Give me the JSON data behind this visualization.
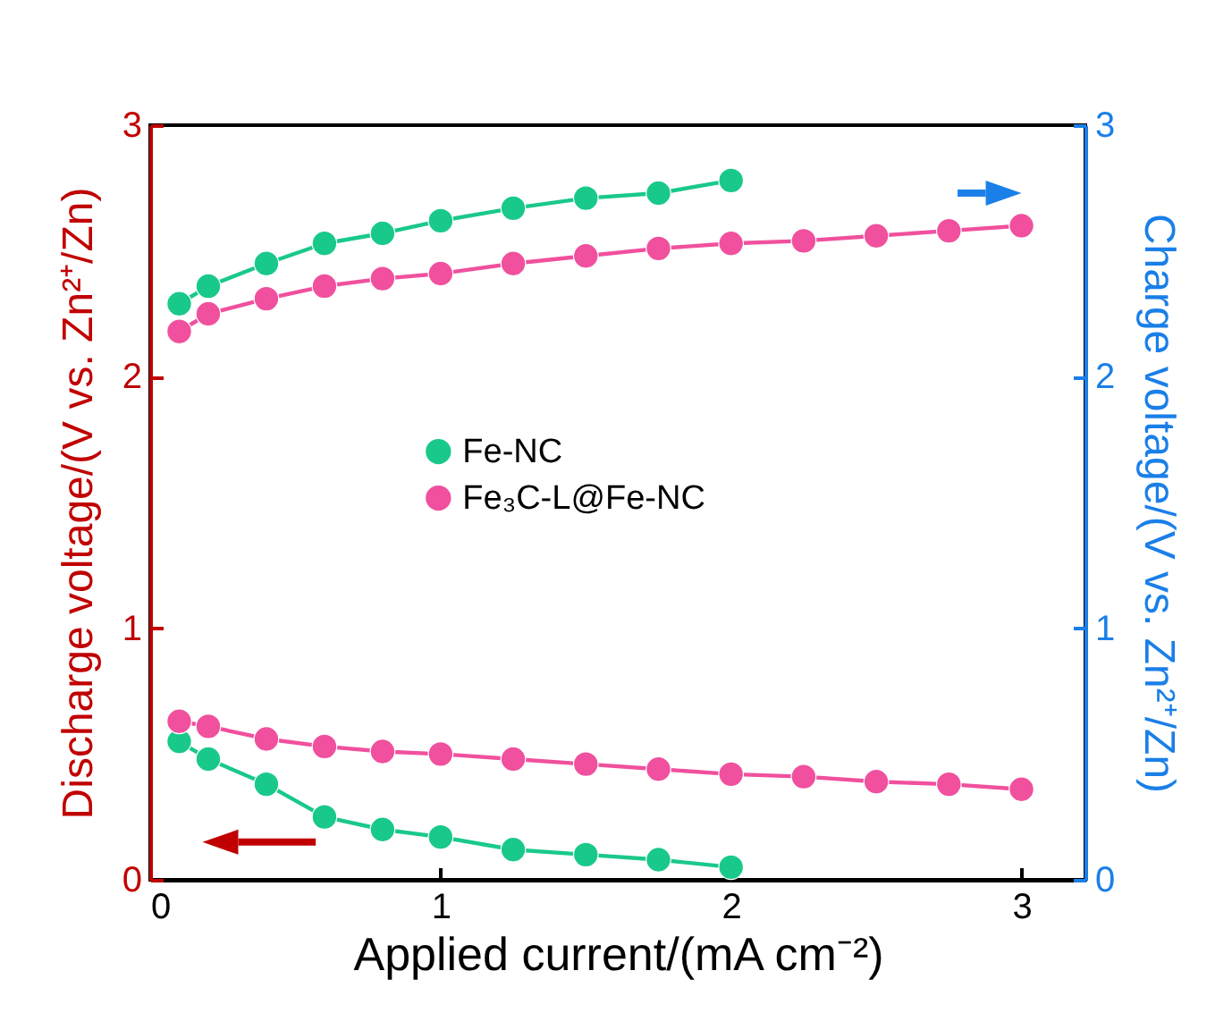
{
  "chart_data": {
    "type": "line",
    "xlabel": "Applied current/(mA cm⁻²)",
    "ylabel": "Discharge voltage/(V vs. Zn²⁺/Zn)",
    "y2label": "Charge voltage/(V vs. Zn²⁺/Zn)",
    "series": [
      {
        "name": "Fe-NC",
        "color": "#19c98a",
        "axis": "y2",
        "x": [
          0.1,
          0.2,
          0.4,
          0.6,
          0.8,
          1.0,
          1.25,
          1.5,
          1.75,
          2.0
        ],
        "values": [
          2.29,
          2.36,
          2.45,
          2.53,
          2.57,
          2.62,
          2.67,
          2.71,
          2.73,
          2.78
        ]
      },
      {
        "name": "Fe₃C-L@Fe-NC",
        "color": "#f0509e",
        "axis": "y2",
        "x": [
          0.1,
          0.2,
          0.4,
          0.6,
          0.8,
          1.0,
          1.25,
          1.5,
          1.75,
          2.0,
          2.25,
          2.5,
          2.75,
          3.0
        ],
        "values": [
          2.18,
          2.25,
          2.31,
          2.36,
          2.39,
          2.41,
          2.45,
          2.48,
          2.51,
          2.53,
          2.54,
          2.56,
          2.58,
          2.6
        ]
      },
      {
        "color": "#19c98a",
        "x": [
          0.1,
          0.2,
          0.4,
          0.6,
          0.8,
          1.0,
          1.25,
          1.5,
          1.75,
          2.0
        ],
        "values": [
          0.55,
          0.48,
          0.38,
          0.25,
          0.2,
          0.17,
          0.12,
          0.1,
          0.08,
          0.05
        ]
      },
      {
        "color": "#f0509e",
        "x": [
          0.1,
          0.2,
          0.4,
          0.6,
          0.8,
          1.0,
          1.25,
          1.5,
          1.75,
          2.0,
          2.25,
          2.5,
          2.75,
          3.0
        ],
        "values": [
          0.63,
          0.61,
          0.56,
          0.53,
          0.51,
          0.5,
          0.48,
          0.46,
          0.44,
          0.42,
          0.41,
          0.39,
          0.38,
          0.36
        ]
      }
    ],
    "xlim": [
      0,
      3.22
    ],
    "xticks": [
      0,
      1,
      2,
      3
    ],
    "ylim": [
      0,
      3
    ],
    "yticks": [
      0,
      1,
      2,
      3
    ],
    "y2lim": [
      0,
      3
    ],
    "y2ticks": [
      0,
      1,
      2,
      3
    ],
    "legend": "center",
    "marker": "circle",
    "line_style": "solid"
  }
}
